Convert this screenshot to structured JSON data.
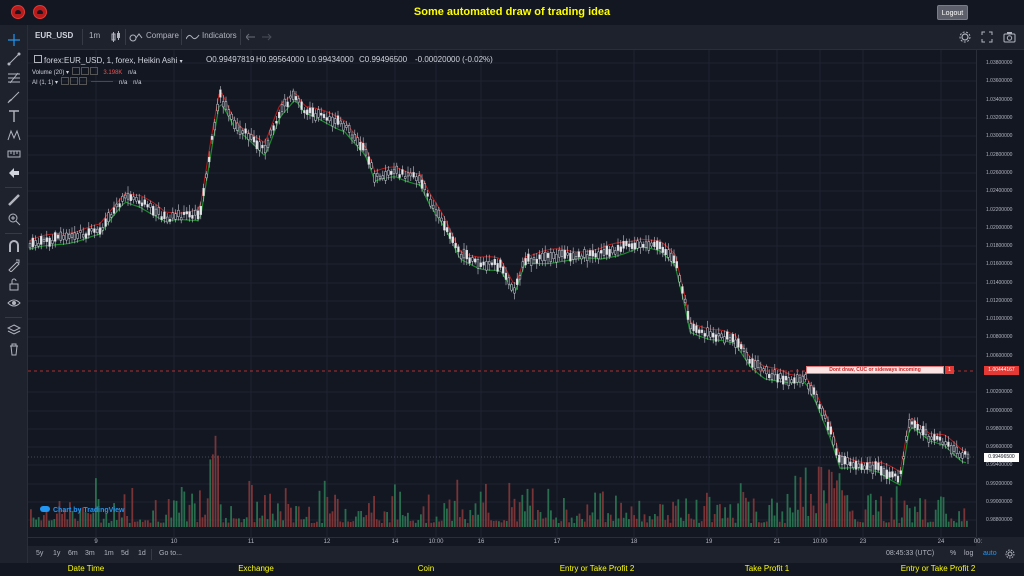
{
  "header": {
    "title": "Some automated draw of trading idea",
    "logout_label": "Logout"
  },
  "toolbar": {
    "symbol": "EUR_USD",
    "interval": "1m",
    "compare_label": "Compare",
    "indicators_label": "Indicators"
  },
  "legend": {
    "series_title": "forex:EUR_USD, 1, forex, Heikin Ashi",
    "open": "O0.99497819",
    "high": "H0.99564000",
    "low": "L0.99434000",
    "close": "C0.99496500",
    "change": "-0.00020000 (-0.02%)",
    "volume_name": "Volume (20)",
    "volume_value": "3.198K",
    "volume_na": "n/a",
    "ai_name": "AI (1, 1)",
    "ai_na1": "n/a",
    "ai_na2": "n/a"
  },
  "price_axis": {
    "ticks": [
      "1.03800000",
      "1.03600000",
      "1.03400000",
      "1.03200000",
      "1.03000000",
      "1.02800000",
      "1.02600000",
      "1.02400000",
      "1.02200000",
      "1.02000000",
      "1.01800000",
      "1.01600000",
      "1.01400000",
      "1.01200000",
      "1.01000000",
      "1.00800000",
      "1.00600000",
      "1.00200000",
      "1.00000000",
      "0.99800000",
      "0.99600000",
      "0.99400000",
      "0.99200000",
      "0.99000000",
      "0.98800000"
    ],
    "line_price_label": "1.00444167",
    "current_price_label": "0.99496500"
  },
  "time_axis": {
    "ticks": [
      "9",
      "10",
      "11",
      "12",
      "14",
      "10:00",
      "16",
      "17",
      "18",
      "19",
      "21",
      "10:00",
      "23",
      "24",
      "00:"
    ]
  },
  "drawing": {
    "text": "Dont draw, CUC or sideways incoming",
    "flag": "1"
  },
  "watermark": "Chart by TradingView",
  "bottom_bar": {
    "ranges": [
      "5y",
      "1y",
      "6m",
      "3m",
      "1m",
      "5d",
      "1d"
    ],
    "goto_label": "Go to...",
    "clock": "08:45:33 (UTC)",
    "percent_label": "%",
    "log_label": "log",
    "auto_label": "auto"
  },
  "footer": {
    "items": [
      "Date Time",
      "Exchange",
      "Coin",
      "Entry or Take Profit 2",
      "Take Profit 1",
      "Entry or Take Profit 2"
    ]
  },
  "colors": {
    "background": "#131722",
    "panel": "#1e222d",
    "title": "#ffff00",
    "up": "#26a69a",
    "down": "#ef5350",
    "bull_volume": "#2e7d57",
    "bear_volume": "#8b3a3a",
    "indicator_red": "#b71c1c",
    "indicator_green": "#1b8a2f"
  }
}
